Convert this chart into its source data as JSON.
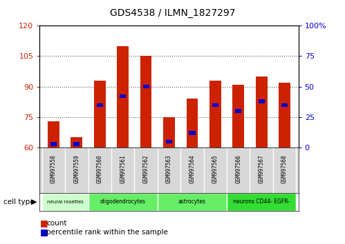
{
  "title": "GDS4538 / ILMN_1827297",
  "samples": [
    "GSM997558",
    "GSM997559",
    "GSM997560",
    "GSM997561",
    "GSM997562",
    "GSM997563",
    "GSM997564",
    "GSM997565",
    "GSM997566",
    "GSM997567",
    "GSM997568"
  ],
  "count_values": [
    73,
    65,
    93,
    110,
    105,
    75,
    84,
    93,
    91,
    95,
    92
  ],
  "percentile_values": [
    3,
    3,
    35,
    42,
    50,
    5,
    12,
    35,
    30,
    38,
    35
  ],
  "ylim_left": [
    60,
    120
  ],
  "ylim_right": [
    0,
    100
  ],
  "yticks_left": [
    60,
    75,
    90,
    105,
    120
  ],
  "ytick_labels_left": [
    "60",
    "75",
    "90",
    "105",
    "120"
  ],
  "ytick_labels_right": [
    "0",
    "25",
    "50",
    "75",
    "100%"
  ],
  "cell_types": [
    {
      "label": "neural rosettes",
      "start": 0,
      "end": 2,
      "color": "#ccffcc"
    },
    {
      "label": "oligodendrocytes",
      "start": 2,
      "end": 5,
      "color": "#66ee66"
    },
    {
      "label": "astrocytes",
      "start": 5,
      "end": 8,
      "color": "#66ee66"
    },
    {
      "label": "neurons CD44- EGFR-",
      "start": 8,
      "end": 11,
      "color": "#33dd33"
    }
  ],
  "bar_color": "#cc2200",
  "percentile_color": "#0000cc",
  "bar_width": 0.5,
  "plot_bg": "#ffffff",
  "tick_area_bg": "#d8d8d8"
}
